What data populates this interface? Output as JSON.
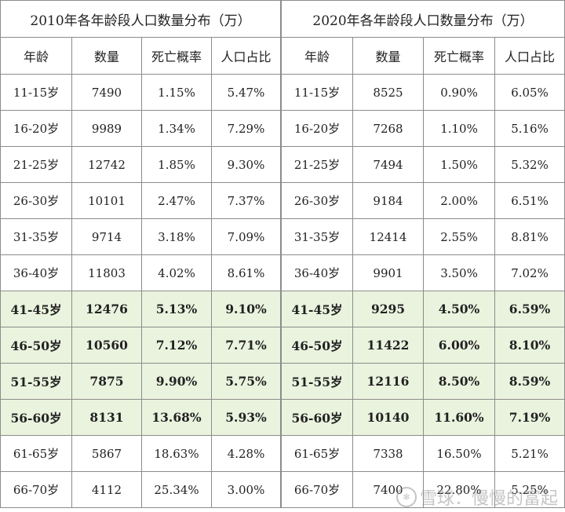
{
  "tables": [
    {
      "title": "2010年各年龄段人口数量分布（万）",
      "headers": [
        "年龄",
        "数量",
        "死亡概率",
        "人口占比"
      ],
      "rows": [
        [
          "11-15岁",
          "7490",
          "1.15%",
          "5.47%"
        ],
        [
          "16-20岁",
          "9989",
          "1.34%",
          "7.29%"
        ],
        [
          "21-25岁",
          "12742",
          "1.85%",
          "9.30%"
        ],
        [
          "26-30岁",
          "10101",
          "2.47%",
          "7.37%"
        ],
        [
          "31-35岁",
          "9714",
          "3.18%",
          "7.09%"
        ],
        [
          "36-40岁",
          "11803",
          "4.02%",
          "8.61%"
        ],
        [
          "41-45岁",
          "12476",
          "5.13%",
          "9.10%"
        ],
        [
          "46-50岁",
          "10560",
          "7.12%",
          "7.71%"
        ],
        [
          "51-55岁",
          "7875",
          "9.90%",
          "5.75%"
        ],
        [
          "56-60岁",
          "8131",
          "13.68%",
          "5.93%"
        ],
        [
          "61-65岁",
          "5867",
          "18.63%",
          "4.28%"
        ],
        [
          "66-70岁",
          "4112",
          "25.34%",
          "3.00%"
        ]
      ]
    },
    {
      "title": "2020年各年龄段人口数量分布（万）",
      "headers": [
        "年龄",
        "数量",
        "死亡概率",
        "人口占比"
      ],
      "rows": [
        [
          "11-15岁",
          "8525",
          "0.90%",
          "6.05%"
        ],
        [
          "16-20岁",
          "7268",
          "1.10%",
          "5.16%"
        ],
        [
          "21-25岁",
          "7494",
          "1.50%",
          "5.32%"
        ],
        [
          "26-30岁",
          "9184",
          "2.00%",
          "6.51%"
        ],
        [
          "31-35岁",
          "12414",
          "2.55%",
          "8.81%"
        ],
        [
          "36-40岁",
          "9901",
          "3.50%",
          "7.02%"
        ],
        [
          "41-45岁",
          "9295",
          "4.50%",
          "6.59%"
        ],
        [
          "46-50岁",
          "11422",
          "6.00%",
          "8.10%"
        ],
        [
          "51-55岁",
          "12116",
          "8.50%",
          "8.59%"
        ],
        [
          "56-60岁",
          "10140",
          "11.60%",
          "7.19%"
        ],
        [
          "61-65岁",
          "7338",
          "16.50%",
          "5.21%"
        ],
        [
          "66-70岁",
          "7400",
          "22.80%",
          "5.25%"
        ]
      ]
    }
  ],
  "highlight_color": "#eaf3de",
  "watermark": "雪球：慢慢的富起"
}
